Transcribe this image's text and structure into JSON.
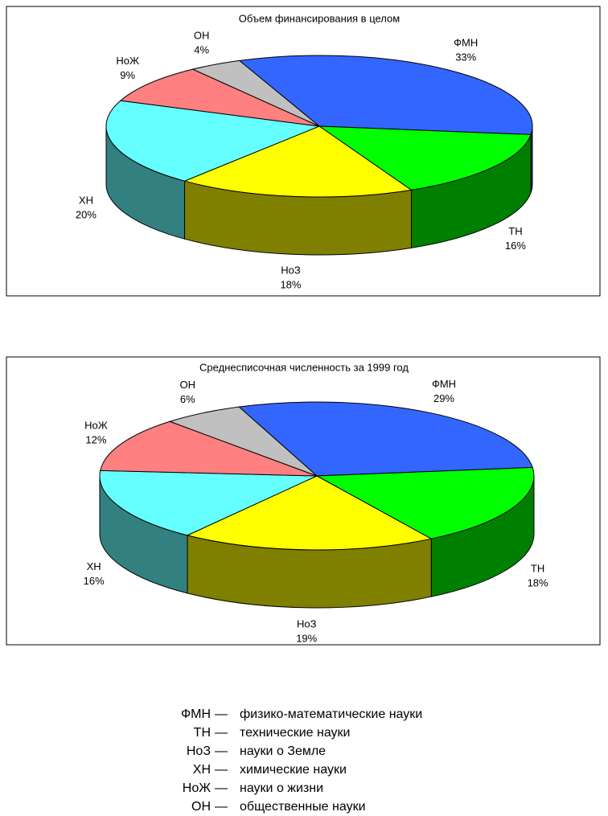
{
  "chart_data": [
    {
      "type": "pie",
      "title": "Объем финансирования в целом",
      "categories": [
        "ФМН",
        "ТН",
        "НоЗ",
        "ХН",
        "НоЖ",
        "ОН"
      ],
      "values": [
        33,
        16,
        18,
        20,
        9,
        4
      ],
      "value_labels": [
        "33%",
        "16%",
        "18%",
        "20%",
        "9%",
        "4%"
      ],
      "colors": [
        "#3366ff",
        "#00ff00",
        "#ffff00",
        "#66ffff",
        "#ff8080",
        "#c0c0c0"
      ]
    },
    {
      "type": "pie",
      "title": "Среднесписочная численность за 1999 год",
      "categories": [
        "ФМН",
        "ТН",
        "НоЗ",
        "ХН",
        "НоЖ",
        "ОН"
      ],
      "values": [
        29,
        18,
        19,
        16,
        12,
        6
      ],
      "value_labels": [
        "29%",
        "18%",
        "19%",
        "16%",
        "12%",
        "6%"
      ],
      "colors": [
        "#3366ff",
        "#00ff00",
        "#ffff00",
        "#66ffff",
        "#ff8080",
        "#c0c0c0"
      ]
    }
  ],
  "glossary": {
    "rows": [
      {
        "abbr": "ФМН",
        "sep": "—",
        "text": "физико-математические науки"
      },
      {
        "abbr": "ТН",
        "sep": "—",
        "text": "технические науки"
      },
      {
        "abbr": "НоЗ",
        "sep": "—",
        "text": "науки о Земле"
      },
      {
        "abbr": "ХН",
        "sep": "—",
        "text": "химические науки"
      },
      {
        "abbr": "НоЖ",
        "sep": "—",
        "text": "науки о жизни"
      },
      {
        "abbr": "ОН",
        "sep": "—",
        "text": "общественные науки"
      }
    ]
  }
}
